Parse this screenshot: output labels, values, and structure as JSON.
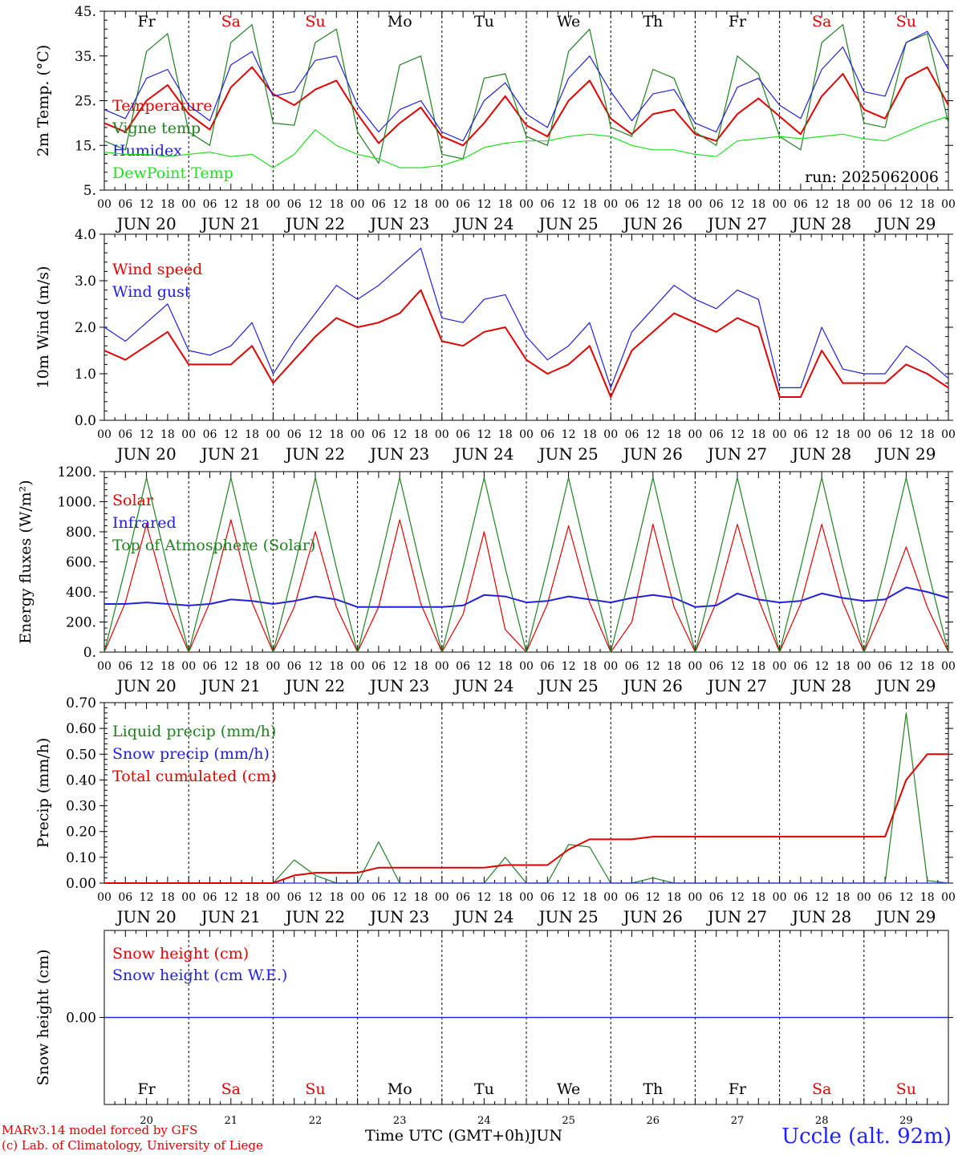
{
  "days": {
    "dates": [
      "JUN 20",
      "JUN 21",
      "JUN 22",
      "JUN 23",
      "JUN 24",
      "JUN 25",
      "JUN 26",
      "JUN 27",
      "JUN 28",
      "JUN 29"
    ],
    "numbers": [
      "20",
      "21",
      "22",
      "23",
      "24",
      "25",
      "26",
      "27",
      "28",
      "29"
    ],
    "weekdays": [
      "Fr",
      "Sa",
      "Su",
      "Mo",
      "Tu",
      "We",
      "Th",
      "Fr",
      "Sa",
      "Su"
    ],
    "weekday_colors": [
      "#000000",
      "#e00000",
      "#e00000",
      "#000000",
      "#000000",
      "#000000",
      "#000000",
      "#000000",
      "#e00000",
      "#e00000"
    ],
    "hour_ticks": [
      "00",
      "06",
      "12",
      "18"
    ],
    "last_tick": "00"
  },
  "footer": {
    "credit_line1": "MARv3.14 model forced by GFS",
    "credit_line2": "(c) Lab. of Climatology, University of Liege",
    "axis_title": "Time UTC (GMT+0h)",
    "month": "JUN",
    "station": "Uccle (alt. 92m)"
  },
  "colors": {
    "red": "#e00000",
    "green": "#208020",
    "blue": "#2020e0",
    "lightgreen": "#20e020"
  },
  "chart_data": [
    {
      "type": "line",
      "ylabel": "2m Temp. (°C)",
      "ylim": [
        5,
        45
      ],
      "yticks": [
        5,
        15,
        25,
        35,
        45
      ],
      "ytick_labels": [
        "5.",
        "15.",
        "25.",
        "35.",
        "45."
      ],
      "annotation": "run: 2025062006",
      "x_hours_start": 0,
      "x_step_hours": 6,
      "series": [
        {
          "name": "Temperature",
          "color": "#e00000",
          "values": [
            20.0,
            18.0,
            25.0,
            28.5,
            22.0,
            18.5,
            28.0,
            32.5,
            26.5,
            24.0,
            27.5,
            29.5,
            22.0,
            15.5,
            20.0,
            23.5,
            17.0,
            15.0,
            20.0,
            26.0,
            19.5,
            17.0,
            25.0,
            29.5,
            21.0,
            17.5,
            22.0,
            23.0,
            17.5,
            16.0,
            22.0,
            25.5,
            21.5,
            17.5,
            26.0,
            31.0,
            23.0,
            21.0,
            30.0,
            32.5,
            24.0
          ]
        },
        {
          "name": "Vigne temp",
          "color": "#208020",
          "values": [
            16.0,
            14.0,
            36.0,
            40.0,
            18.0,
            15.0,
            38.0,
            42.0,
            20.0,
            19.5,
            38.0,
            41.0,
            18.0,
            11.0,
            33.0,
            35.0,
            13.0,
            12.0,
            30.0,
            31.0,
            17.0,
            15.0,
            36.0,
            41.0,
            19.0,
            17.0,
            32.0,
            30.0,
            18.0,
            15.0,
            35.0,
            31.0,
            17.0,
            14.0,
            38.0,
            42.0,
            20.0,
            19.0,
            38.0,
            40.0,
            20.0
          ]
        },
        {
          "name": "Humidex",
          "color": "#2020e0",
          "values": [
            23.0,
            21.0,
            30.0,
            32.0,
            24.0,
            20.5,
            33.0,
            36.0,
            26.0,
            27.0,
            34.0,
            35.0,
            24.0,
            18.0,
            23.0,
            25.0,
            18.0,
            16.0,
            25.0,
            29.0,
            22.0,
            19.0,
            30.0,
            35.0,
            27.0,
            20.5,
            26.5,
            27.5,
            20.0,
            18.0,
            28.0,
            30.0,
            24.0,
            21.0,
            32.0,
            37.0,
            27.0,
            26.0,
            38.0,
            40.5,
            32.0
          ]
        },
        {
          "name": "DewPoint Temp",
          "color": "#20e020",
          "values": [
            13.5,
            13.0,
            13.0,
            12.5,
            13.0,
            13.5,
            12.5,
            13.0,
            10.0,
            13.0,
            18.5,
            15.0,
            13.0,
            12.0,
            10.0,
            10.0,
            10.5,
            12.0,
            14.5,
            15.5,
            16.0,
            16.0,
            17.0,
            17.5,
            17.0,
            15.0,
            14.0,
            14.0,
            13.0,
            12.5,
            16.0,
            16.5,
            17.0,
            16.5,
            17.0,
            17.5,
            16.5,
            16.0,
            18.0,
            20.0,
            21.5
          ]
        }
      ]
    },
    {
      "type": "line",
      "ylabel": "10m Wind (m/s)",
      "ylim": [
        0,
        4
      ],
      "yticks": [
        0,
        1,
        2,
        3,
        4
      ],
      "ytick_labels": [
        "0.0",
        "1.0",
        "2.0",
        "3.0",
        "4.0"
      ],
      "x_hours_start": 0,
      "x_step_hours": 6,
      "series": [
        {
          "name": "Wind speed",
          "color": "#e00000",
          "values": [
            1.5,
            1.3,
            1.6,
            1.9,
            1.2,
            1.2,
            1.2,
            1.6,
            0.8,
            1.3,
            1.8,
            2.2,
            2.0,
            2.1,
            2.3,
            2.8,
            1.7,
            1.6,
            1.9,
            2.0,
            1.3,
            1.0,
            1.2,
            1.6,
            0.5,
            1.5,
            1.9,
            2.3,
            2.1,
            1.9,
            2.2,
            2.0,
            0.5,
            0.5,
            1.5,
            0.8,
            0.8,
            0.8,
            1.2,
            1.0,
            0.7
          ]
        },
        {
          "name": "Wind gust",
          "color": "#2020e0",
          "values": [
            2.0,
            1.7,
            2.1,
            2.5,
            1.5,
            1.4,
            1.6,
            2.1,
            1.0,
            1.7,
            2.3,
            2.9,
            2.6,
            2.9,
            3.3,
            3.7,
            2.2,
            2.1,
            2.6,
            2.7,
            1.8,
            1.3,
            1.6,
            2.1,
            0.7,
            1.9,
            2.4,
            2.9,
            2.6,
            2.4,
            2.8,
            2.6,
            0.7,
            0.7,
            2.0,
            1.1,
            1.0,
            1.0,
            1.6,
            1.3,
            0.9
          ]
        }
      ]
    },
    {
      "type": "line",
      "ylabel": "Energy fluxes (W/m²)",
      "ylim": [
        0,
        1200
      ],
      "yticks": [
        0,
        200,
        400,
        600,
        800,
        1000,
        1200
      ],
      "ytick_labels": [
        "0.",
        "200.",
        "400.",
        "600.",
        "800.",
        "1000.",
        "1200."
      ],
      "x_hours_start": 0,
      "x_step_hours": 6,
      "series": [
        {
          "name": "Solar",
          "color": "#e00000",
          "values": [
            0,
            330,
            850,
            330,
            0,
            330,
            880,
            330,
            0,
            300,
            800,
            300,
            0,
            300,
            880,
            320,
            0,
            250,
            800,
            150,
            0,
            320,
            840,
            330,
            0,
            200,
            850,
            300,
            0,
            330,
            850,
            350,
            0,
            320,
            850,
            330,
            0,
            320,
            700,
            300,
            0
          ]
        },
        {
          "name": "Infrared",
          "color": "#2020e0",
          "values": [
            320,
            320,
            330,
            320,
            310,
            320,
            350,
            340,
            320,
            340,
            370,
            350,
            300,
            300,
            300,
            300,
            300,
            310,
            380,
            370,
            330,
            340,
            370,
            350,
            330,
            360,
            380,
            360,
            300,
            310,
            390,
            350,
            330,
            340,
            390,
            360,
            340,
            350,
            430,
            400,
            360
          ]
        },
        {
          "name": "Top of Atmosphere (Solar)",
          "color": "#208020",
          "values": [
            0,
            560,
            1160,
            560,
            0,
            560,
            1160,
            560,
            0,
            560,
            1160,
            560,
            0,
            560,
            1160,
            560,
            0,
            560,
            1160,
            560,
            0,
            560,
            1160,
            560,
            0,
            560,
            1160,
            560,
            0,
            560,
            1160,
            560,
            0,
            560,
            1160,
            560,
            0,
            560,
            1160,
            560,
            0
          ]
        }
      ]
    },
    {
      "type": "line",
      "ylabel": "Precip (mm/h)",
      "ylim": [
        0,
        0.7
      ],
      "yticks": [
        0,
        0.1,
        0.2,
        0.3,
        0.4,
        0.5,
        0.6,
        0.7
      ],
      "ytick_labels": [
        "0.00",
        "0.10",
        "0.20",
        "0.30",
        "0.40",
        "0.50",
        "0.60",
        "0.70"
      ],
      "x_hours_start": 0,
      "x_step_hours": 6,
      "series": [
        {
          "name": "Liquid precip (mm/h)",
          "color": "#208020",
          "values": [
            0,
            0,
            0,
            0,
            0,
            0,
            0,
            0,
            0,
            0.09,
            0.03,
            0,
            0,
            0.16,
            0,
            0,
            0,
            0,
            0,
            0.1,
            0,
            0,
            0.15,
            0.14,
            0,
            0,
            0.02,
            0,
            0,
            0,
            0,
            0,
            0,
            0,
            0,
            0,
            0,
            0,
            0.66,
            0.01,
            0
          ]
        },
        {
          "name": "Snow precip (mm/h)",
          "color": "#2020e0",
          "values": [
            0,
            0,
            0,
            0,
            0,
            0,
            0,
            0,
            0,
            0,
            0,
            0,
            0,
            0,
            0,
            0,
            0,
            0,
            0,
            0,
            0,
            0,
            0,
            0,
            0,
            0,
            0,
            0,
            0,
            0,
            0,
            0,
            0,
            0,
            0,
            0,
            0,
            0,
            0,
            0,
            0
          ]
        },
        {
          "name": "Total cumulated (cm)",
          "color": "#e00000",
          "values": [
            0,
            0,
            0,
            0,
            0,
            0,
            0,
            0,
            0,
            0.03,
            0.04,
            0.04,
            0.04,
            0.06,
            0.06,
            0.06,
            0.06,
            0.06,
            0.06,
            0.07,
            0.07,
            0.07,
            0.13,
            0.17,
            0.17,
            0.17,
            0.18,
            0.18,
            0.18,
            0.18,
            0.18,
            0.18,
            0.18,
            0.18,
            0.18,
            0.18,
            0.18,
            0.18,
            0.4,
            0.5,
            0.5
          ]
        }
      ]
    },
    {
      "type": "line",
      "ylabel": "Snow height (cm)",
      "ylim": [
        -1,
        1
      ],
      "yticks": [
        0
      ],
      "ytick_labels": [
        "0.00"
      ],
      "x_hours_start": 0,
      "x_step_hours": 6,
      "series": [
        {
          "name": "Snow height (cm)",
          "color": "#e00000",
          "values": [
            0,
            0,
            0,
            0,
            0,
            0,
            0,
            0,
            0,
            0,
            0,
            0,
            0,
            0,
            0,
            0,
            0,
            0,
            0,
            0,
            0,
            0,
            0,
            0,
            0,
            0,
            0,
            0,
            0,
            0,
            0,
            0,
            0,
            0,
            0,
            0,
            0,
            0,
            0,
            0,
            0
          ]
        },
        {
          "name": "Snow height (cm W.E.)",
          "color": "#2020e0",
          "values": [
            0,
            0,
            0,
            0,
            0,
            0,
            0,
            0,
            0,
            0,
            0,
            0,
            0,
            0,
            0,
            0,
            0,
            0,
            0,
            0,
            0,
            0,
            0,
            0,
            0,
            0,
            0,
            0,
            0,
            0,
            0,
            0,
            0,
            0,
            0,
            0,
            0,
            0,
            0,
            0,
            0
          ]
        }
      ]
    }
  ]
}
